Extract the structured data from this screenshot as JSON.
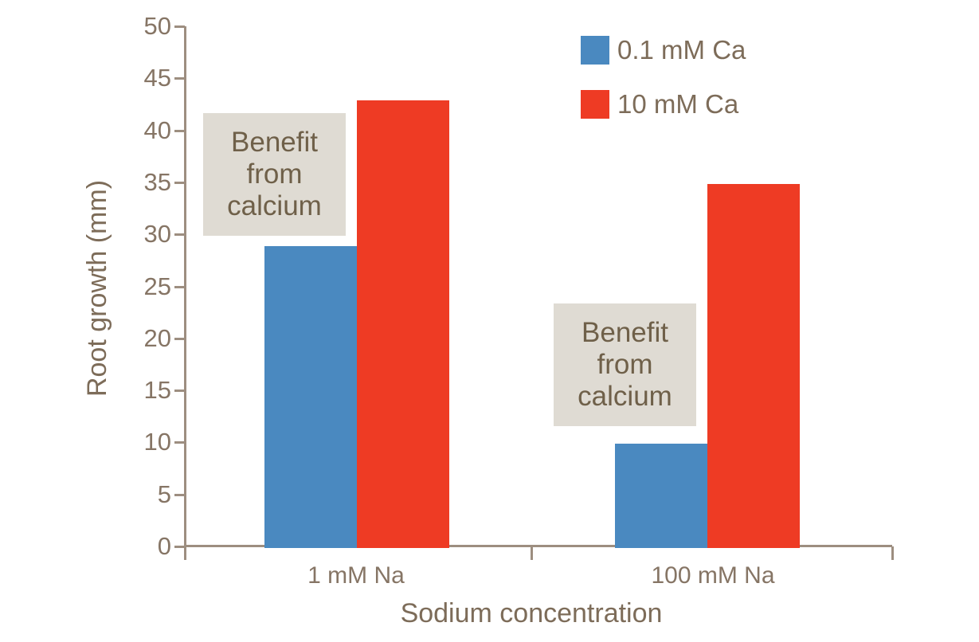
{
  "chart_data": {
    "type": "bar",
    "title": "",
    "xlabel": "Sodium concentration",
    "ylabel": "Root growth (mm)",
    "categories": [
      "1 mM Na",
      "100 mM Na"
    ],
    "series": [
      {
        "name": "0.1 mM Ca",
        "color": "#4a89c0",
        "values": [
          29,
          10
        ]
      },
      {
        "name": "10 mM Ca",
        "color": "#ee3b24",
        "values": [
          43,
          35
        ]
      }
    ],
    "ylim": [
      0,
      50
    ],
    "yticks": [
      0,
      5,
      10,
      15,
      20,
      25,
      30,
      35,
      40,
      45,
      50
    ],
    "grid": false,
    "legend_position": "top-right",
    "annotations": [
      {
        "text": "Benefit from calcium",
        "category": "1 mM Na"
      },
      {
        "text": "Benefit from calcium",
        "category": "100 mM Na"
      }
    ],
    "colors": {
      "axis": "#9d8e80",
      "tick_text": "#867565",
      "label_text": "#7d6c59",
      "annotation_bg": "#dfdbd3",
      "annotation_text": "#6f6049",
      "background": "#ffffff"
    }
  }
}
